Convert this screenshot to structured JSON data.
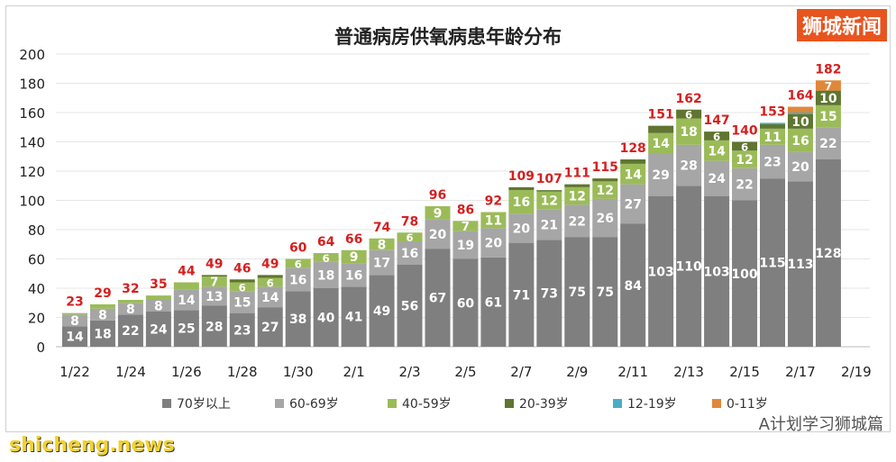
{
  "chart_data": {
    "type": "bar",
    "stacked": true,
    "title": "普通病房供氧病患年龄分布",
    "categories": [
      "1/22",
      "1/23",
      "1/24",
      "1/25",
      "1/26",
      "1/27",
      "1/28",
      "1/29",
      "1/30",
      "1/31",
      "2/1",
      "2/2",
      "2/3",
      "2/4",
      "2/5",
      "2/6",
      "2/7",
      "2/8",
      "2/9",
      "2/10",
      "2/11",
      "2/12",
      "2/13",
      "2/14",
      "2/15",
      "2/16",
      "2/17",
      "2/18"
    ],
    "x_tick_labels": [
      "1/22",
      "1/24",
      "1/26",
      "1/28",
      "1/30",
      "2/1",
      "2/3",
      "2/5",
      "2/7",
      "2/9",
      "2/11",
      "2/13",
      "2/15",
      "2/17",
      "2/19"
    ],
    "ylim": [
      0,
      200
    ],
    "yticks": [
      0,
      20,
      40,
      60,
      80,
      100,
      120,
      140,
      160,
      180,
      200
    ],
    "grid": true,
    "legend": "bottom",
    "series": [
      {
        "name": "70岁以上",
        "color": "#7f7f7f",
        "values": [
          14,
          18,
          22,
          24,
          25,
          28,
          23,
          27,
          38,
          40,
          41,
          49,
          56,
          67,
          60,
          61,
          71,
          73,
          75,
          75,
          84,
          103,
          110,
          103,
          100,
          115,
          113,
          128
        ]
      },
      {
        "name": "60-69岁",
        "color": "#a6a6a6",
        "values": [
          8,
          8,
          8,
          8,
          14,
          13,
          15,
          14,
          16,
          18,
          16,
          17,
          16,
          20,
          19,
          20,
          20,
          21,
          22,
          26,
          27,
          29,
          28,
          24,
          22,
          23,
          20,
          22
        ]
      },
      {
        "name": "40-59岁",
        "color": "#9bbb59",
        "values": [
          1,
          3,
          2,
          3,
          5,
          7,
          6,
          6,
          6,
          6,
          9,
          8,
          6,
          9,
          7,
          11,
          16,
          12,
          12,
          12,
          14,
          14,
          18,
          14,
          12,
          11,
          16,
          15
        ]
      },
      {
        "name": "20-39岁",
        "color": "#5f7530",
        "values": [
          0,
          0,
          0,
          0,
          0,
          1,
          2,
          2,
          0,
          0,
          0,
          0,
          0,
          0,
          0,
          0,
          2,
          1,
          2,
          2,
          3,
          5,
          6,
          6,
          6,
          3,
          10,
          10
        ]
      },
      {
        "name": "12-19岁",
        "color": "#4bacc6",
        "values": [
          0,
          0,
          0,
          0,
          0,
          0,
          0,
          0,
          0,
          0,
          0,
          0,
          0,
          0,
          0,
          0,
          0,
          0,
          0,
          0,
          0,
          0,
          0,
          0,
          0,
          1,
          1,
          0
        ]
      },
      {
        "name": "0-11岁",
        "color": "#e0883a",
        "values": [
          0,
          0,
          0,
          0,
          0,
          0,
          0,
          0,
          0,
          0,
          0,
          0,
          0,
          0,
          0,
          0,
          0,
          0,
          0,
          0,
          0,
          0,
          0,
          0,
          0,
          0,
          4,
          7
        ]
      }
    ],
    "totals": [
      23,
      29,
      32,
      35,
      44,
      49,
      46,
      49,
      60,
      64,
      66,
      74,
      78,
      96,
      86,
      92,
      109,
      107,
      111,
      115,
      128,
      151,
      162,
      147,
      140,
      153,
      164,
      182
    ],
    "total_label_color": "#d42020"
  },
  "watermarks": {
    "brand": "狮城新闻",
    "wechat": "A计划学习狮城篇",
    "site": "shicheng.news"
  }
}
